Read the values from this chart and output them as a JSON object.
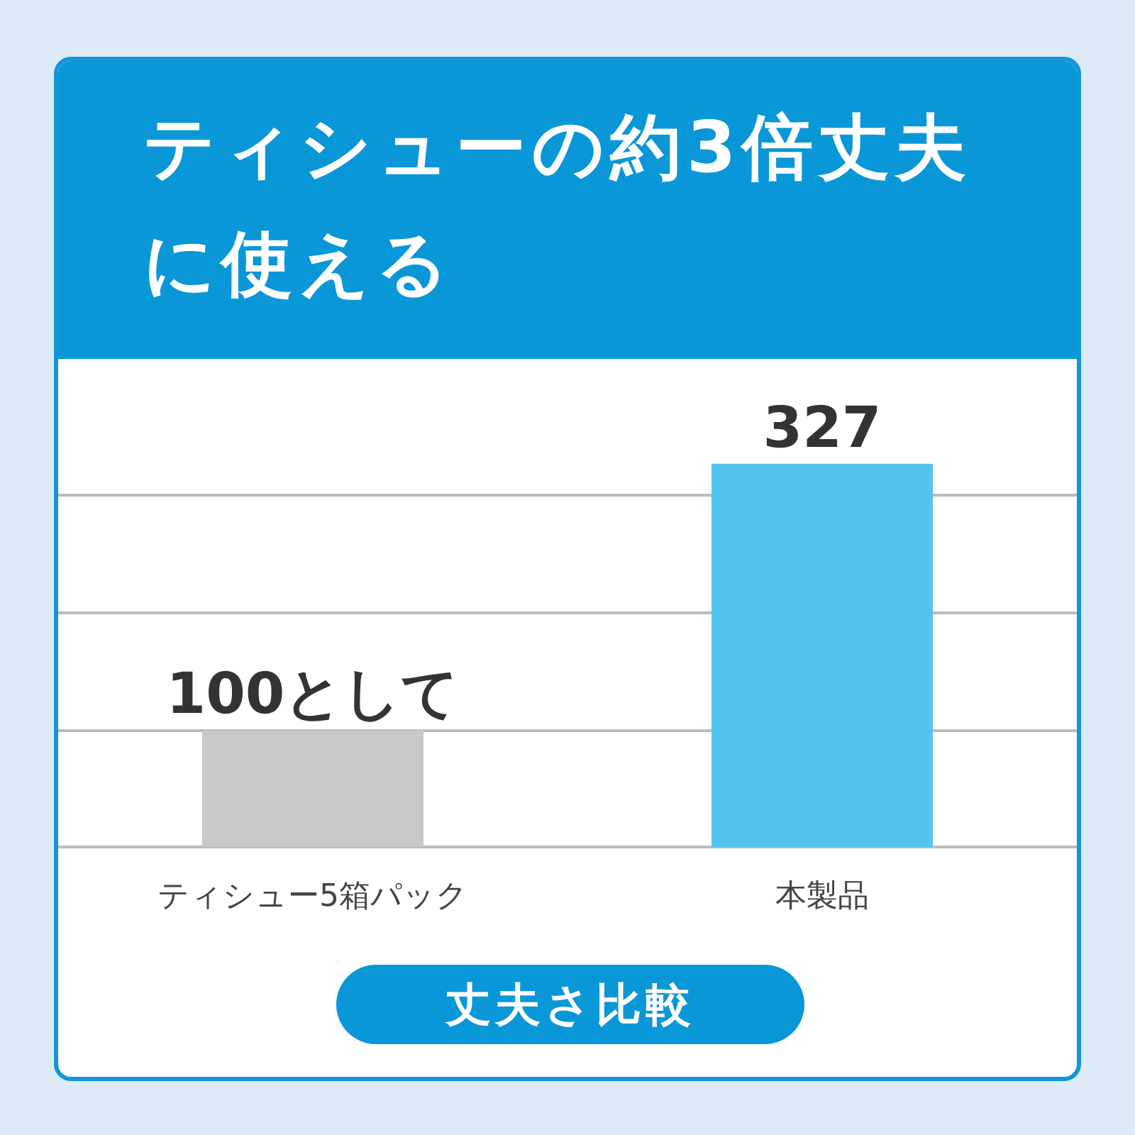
{
  "chart_data": {
    "type": "bar",
    "title": "ティシューの約3倍丈夫に使える",
    "xlabel": "丈夫さ比較",
    "categories": [
      "ティシュー5箱パック",
      "本製品"
    ],
    "values": [
      100,
      327
    ],
    "colors": [
      "#c8c8c8",
      "#55c3f0"
    ],
    "value_labels": [
      "100として",
      "327"
    ],
    "ylim": [
      0,
      420
    ],
    "yticks": [
      {
        "value": 0,
        "label": null
      },
      {
        "value": 100,
        "label": null
      },
      {
        "value": 200,
        "label": null
      },
      {
        "value": 300,
        "label": null
      }
    ],
    "tick_labels": "x",
    "grid": "y"
  }
}
